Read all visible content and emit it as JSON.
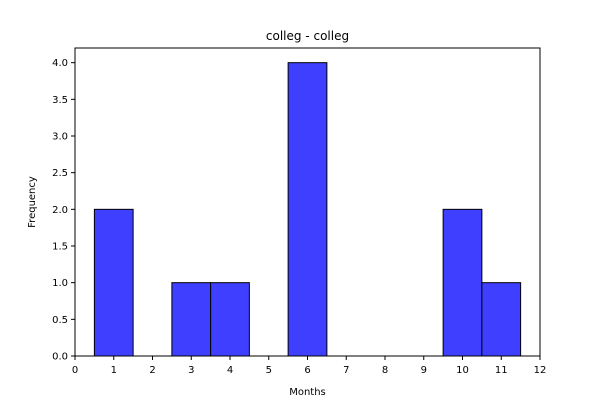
{
  "chart_data": {
    "type": "bar",
    "title": "colleg - colleg",
    "xlabel": "Months",
    "ylabel": "Frequency",
    "bars": [
      {
        "x0": 0.5,
        "x1": 1.5,
        "value": 2
      },
      {
        "x0": 2.5,
        "x1": 3.5,
        "value": 1
      },
      {
        "x0": 3.5,
        "x1": 4.5,
        "value": 1
      },
      {
        "x0": 5.5,
        "x1": 6.5,
        "value": 4
      },
      {
        "x0": 9.5,
        "x1": 10.5,
        "value": 2
      },
      {
        "x0": 10.5,
        "x1": 11.5,
        "value": 1
      }
    ],
    "xlim": [
      0,
      12
    ],
    "ylim": [
      0,
      4.2
    ],
    "xticks": [
      0,
      1,
      2,
      3,
      4,
      5,
      6,
      7,
      8,
      9,
      10,
      11,
      12
    ],
    "xtick_labels": [
      "0",
      "1",
      "2",
      "3",
      "4",
      "5",
      "6",
      "7",
      "8",
      "9",
      "10",
      "11",
      "12"
    ],
    "yticks": [
      0,
      0.5,
      1,
      1.5,
      2,
      2.5,
      3,
      3.5,
      4
    ],
    "ytick_labels": [
      "0.0",
      "0.5",
      "1.0",
      "1.5",
      "2.0",
      "2.5",
      "3.0",
      "3.5",
      "4.0"
    ],
    "grid": false,
    "bar_color": "#3f3fff",
    "edge_color": "#000000"
  }
}
